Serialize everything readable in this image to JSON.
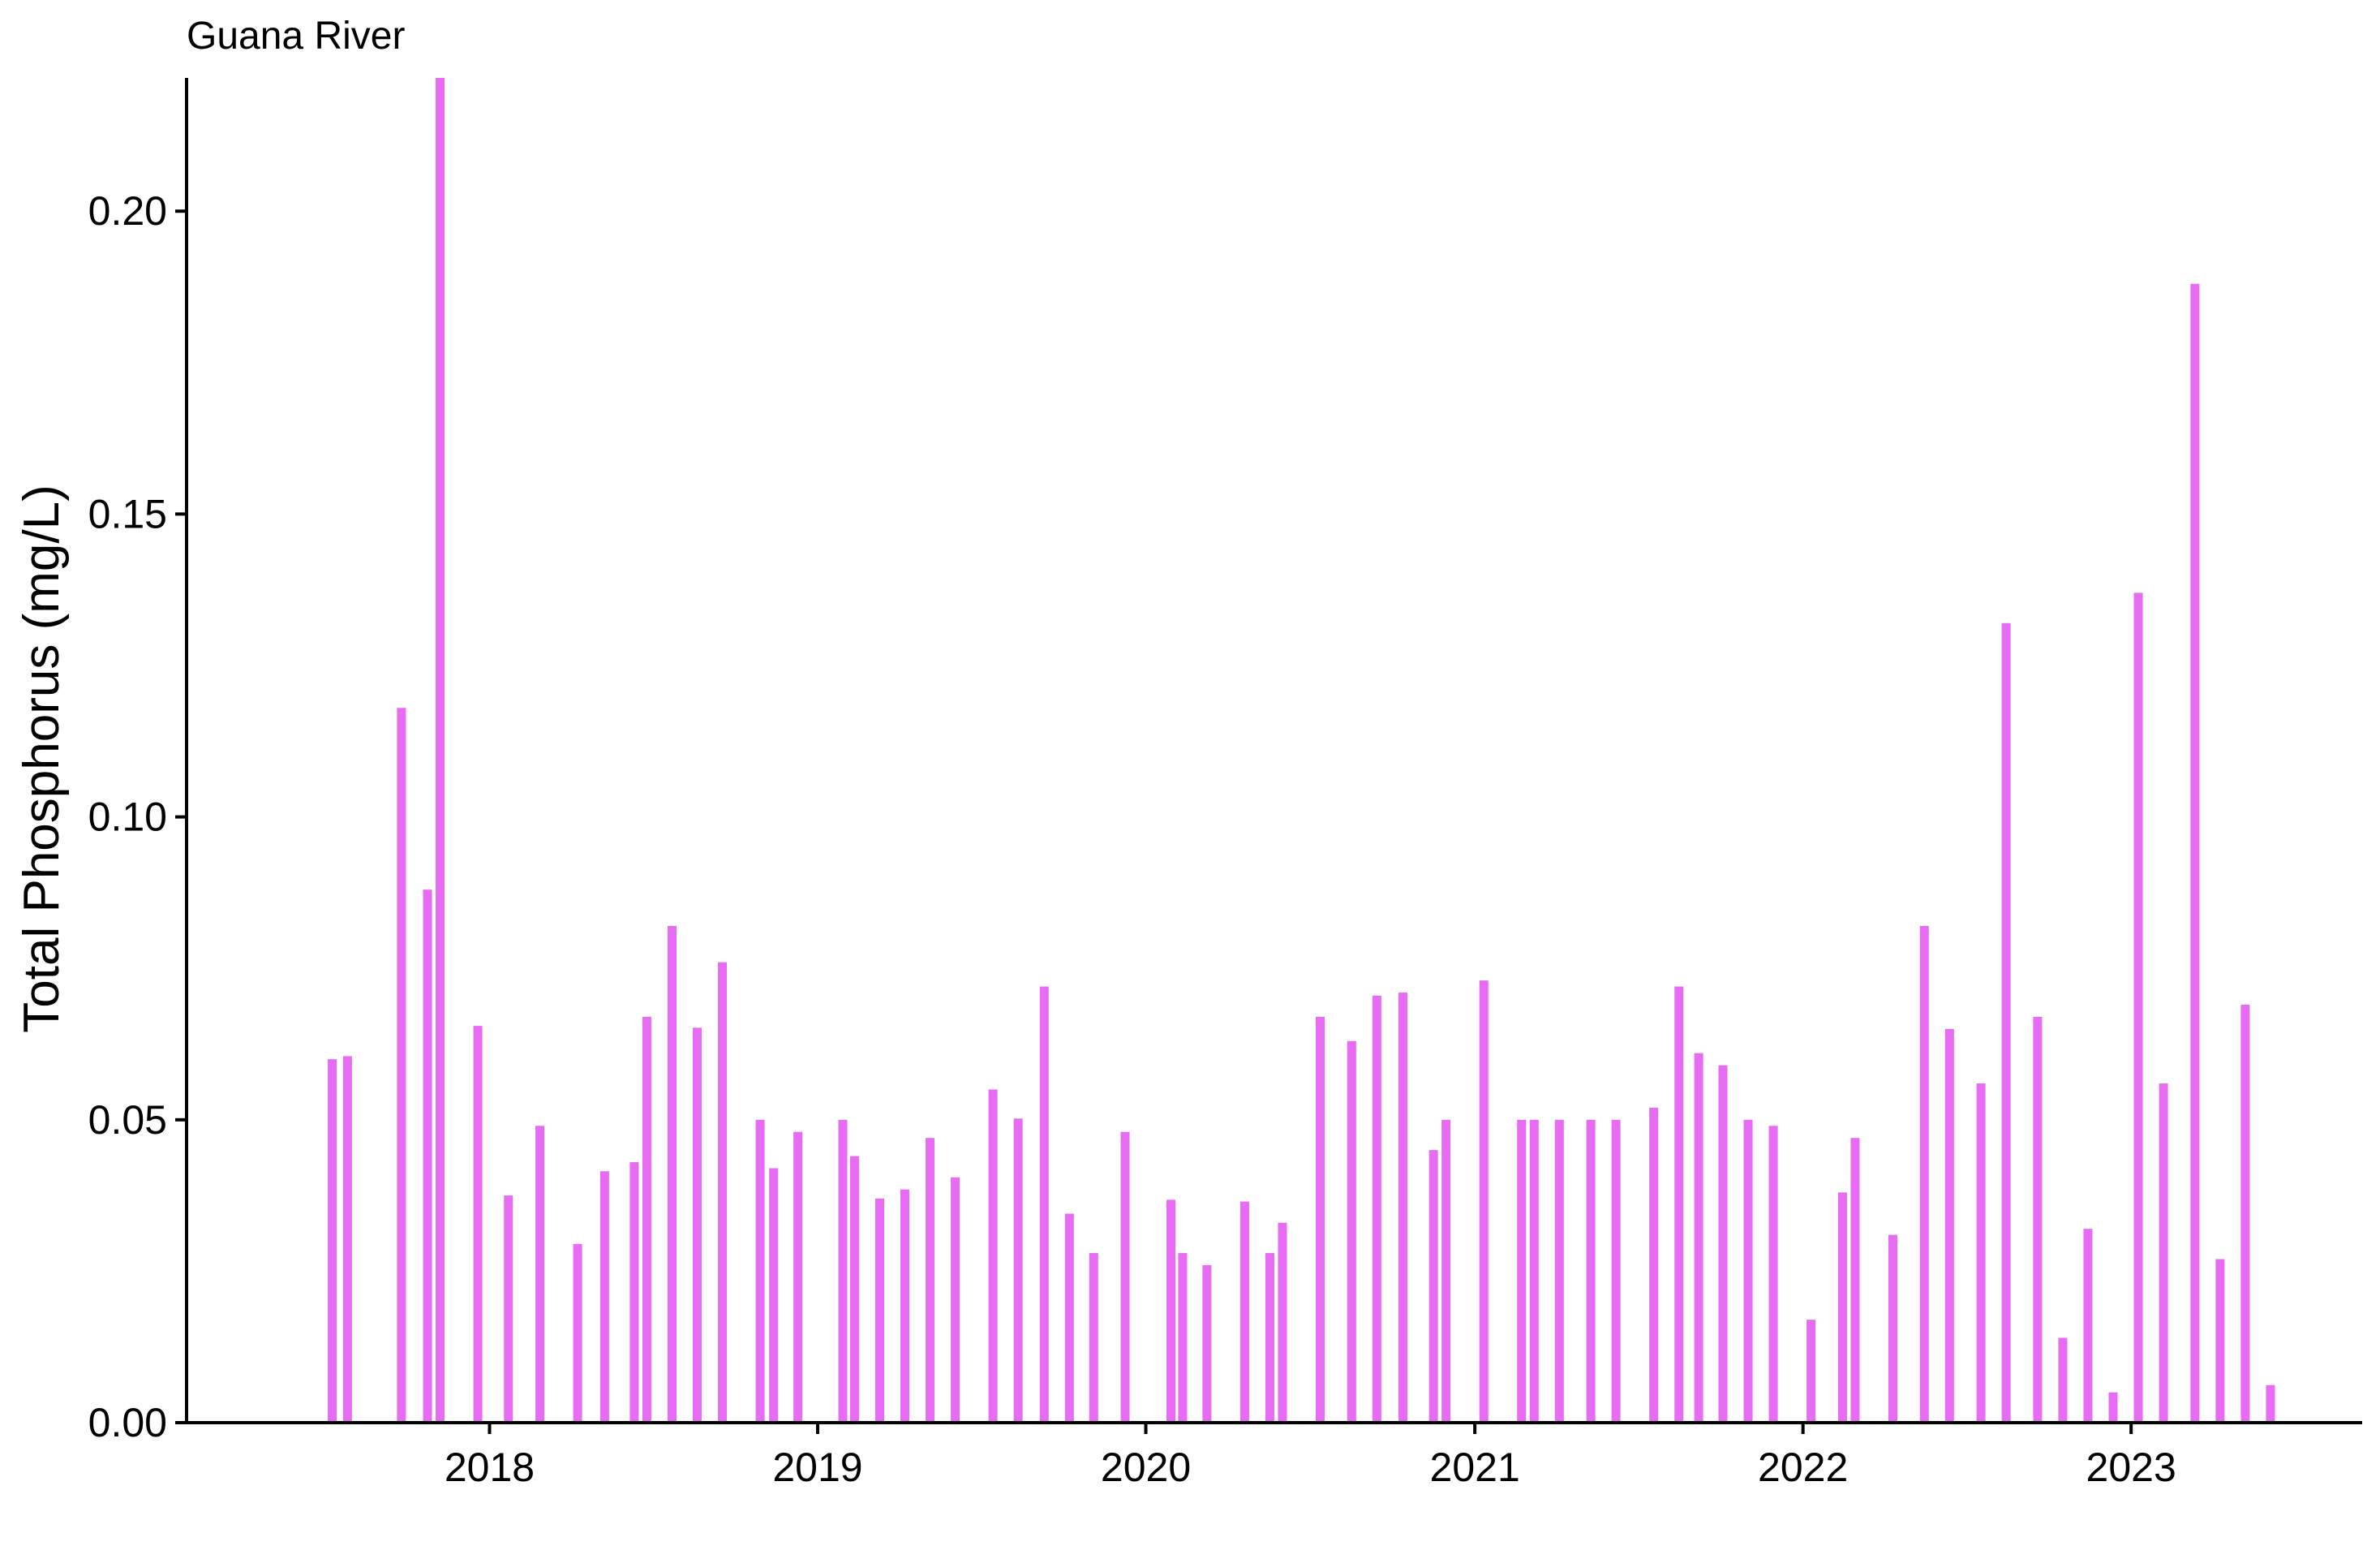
{
  "chart_data": {
    "type": "bar",
    "title": "Guana River",
    "xlabel": "",
    "ylabel": "Total Phosphorus (mg/L)",
    "bar_color": "#E76BF3",
    "x_is_date": true,
    "xlim": [
      "2017-01-29",
      "2023-09-15"
    ],
    "ylim": [
      0,
      0.222
    ],
    "grid": false,
    "legend": "none",
    "y_ticks": [
      0.0,
      0.05,
      0.1,
      0.15,
      0.2
    ],
    "y_tick_labels": [
      "0.00",
      "0.05",
      "0.10",
      "0.15",
      "0.20"
    ],
    "x_ticks": [
      "2018-01-01",
      "2019-01-01",
      "2020-01-01",
      "2021-01-01",
      "2022-01-01",
      "2023-01-01"
    ],
    "x_tick_labels": [
      "2018",
      "2019",
      "2020",
      "2021",
      "2022",
      "2023"
    ],
    "x": [
      "2017-07-10",
      "2017-07-27",
      "2017-09-25",
      "2017-10-24",
      "2017-11-07",
      "2017-12-19",
      "2018-01-22",
      "2018-02-26",
      "2018-04-09",
      "2018-05-09",
      "2018-06-11",
      "2018-06-25",
      "2018-07-23",
      "2018-08-20",
      "2018-09-17",
      "2018-10-29",
      "2018-11-13",
      "2018-12-10",
      "2019-01-29",
      "2019-02-11",
      "2019-03-11",
      "2019-04-08",
      "2019-05-06",
      "2019-06-03",
      "2019-07-15",
      "2019-08-12",
      "2019-09-10",
      "2019-10-08",
      "2019-11-04",
      "2019-12-09",
      "2020-01-29",
      "2020-02-11",
      "2020-03-09",
      "2020-04-20",
      "2020-05-18",
      "2020-06-01",
      "2020-07-13",
      "2020-08-17",
      "2020-09-14",
      "2020-10-13",
      "2020-11-16",
      "2020-11-30",
      "2021-01-11",
      "2021-02-22",
      "2021-03-08",
      "2021-04-05",
      "2021-05-10",
      "2021-06-07",
      "2021-07-19",
      "2021-08-16",
      "2021-09-07",
      "2021-10-04",
      "2021-11-01",
      "2021-11-29",
      "2022-01-10",
      "2022-02-14",
      "2022-02-28",
      "2022-04-11",
      "2022-05-16",
      "2022-06-13",
      "2022-07-18",
      "2022-08-15",
      "2022-09-19",
      "2022-10-17",
      "2022-11-14",
      "2022-12-12",
      "2023-01-09",
      "2023-02-06",
      "2023-03-13",
      "2023-04-10",
      "2023-05-08",
      "2023-06-05"
    ],
    "values": [
      0.06,
      0.0605,
      0.118,
      0.088,
      0.222,
      0.0655,
      0.0375,
      0.049,
      0.0295,
      0.0415,
      0.043,
      0.067,
      0.082,
      0.0652,
      0.076,
      0.05,
      0.042,
      0.048,
      0.05,
      0.044,
      0.037,
      0.0385,
      0.047,
      0.0405,
      0.055,
      0.0502,
      0.072,
      0.0345,
      0.028,
      0.048,
      0.0368,
      0.028,
      0.026,
      0.0365,
      0.028,
      0.033,
      0.067,
      0.063,
      0.0705,
      0.071,
      0.045,
      0.05,
      0.073,
      0.05,
      0.05,
      0.05,
      0.05,
      0.05,
      0.052,
      0.072,
      0.061,
      0.059,
      0.05,
      0.049,
      0.017,
      0.038,
      0.047,
      0.031,
      0.082,
      0.065,
      0.056,
      0.132,
      0.067,
      0.014,
      0.032,
      0.005,
      0.137,
      0.056,
      0.188,
      0.027,
      0.069,
      0.0062
    ]
  }
}
